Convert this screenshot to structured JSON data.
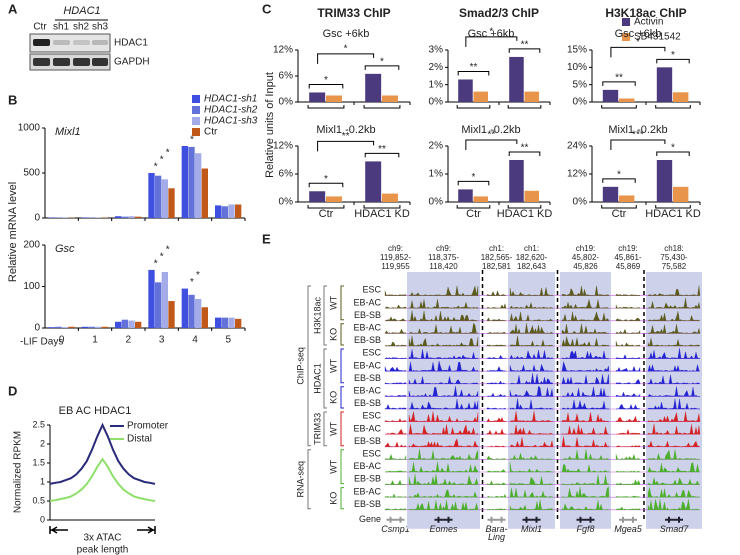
{
  "panel_labels": [
    "A",
    "B",
    "C",
    "D",
    "E"
  ],
  "panel_a": {
    "group_label": "HDAC1",
    "lanes": [
      "Ctr",
      "sh1",
      "sh2",
      "sh3"
    ],
    "rows": [
      "HDAC1",
      "GAPDH"
    ]
  },
  "panel_b": {
    "ylabel": "Relative mRNA level",
    "xlabel": "-LIF Days"
  },
  "panel_c": {
    "ylabel": "Relative units of Input"
  },
  "chart_data": [
    {
      "type": "bar",
      "title": "Mixl1",
      "series": [
        {
          "name": "HDAC1-sh1",
          "color": "#3f4fe0",
          "values": [
            5,
            5,
            20,
            500,
            800,
            140
          ]
        },
        {
          "name": "HDAC1-sh2",
          "color": "#6272d8",
          "values": [
            5,
            5,
            15,
            470,
            790,
            130
          ]
        },
        {
          "name": "HDAC1-sh3",
          "color": "#a3ace8",
          "values": [
            5,
            5,
            20,
            430,
            720,
            150
          ]
        },
        {
          "name": "Ctr",
          "color": "#c0581a",
          "values": [
            5,
            5,
            15,
            330,
            550,
            150
          ]
        }
      ],
      "stars": [
        null,
        null,
        null,
        [
          "*",
          "*",
          "*"
        ],
        [
          "*",
          "*"
        ],
        null
      ],
      "ylim": [
        0,
        1000
      ],
      "yticks": [
        0,
        500,
        1000
      ]
    },
    {
      "type": "bar",
      "title": "Gsc",
      "categories": [
        "0",
        "1",
        "2",
        "3",
        "4",
        "5"
      ],
      "series": [
        {
          "color": "#3f4fe0",
          "values": [
            2,
            3,
            15,
            140,
            95,
            25
          ]
        },
        {
          "color": "#6272d8",
          "values": [
            3,
            3,
            20,
            110,
            80,
            25
          ]
        },
        {
          "color": "#a3ace8",
          "values": [
            2,
            3,
            18,
            135,
            70,
            25
          ]
        },
        {
          "color": "#c0581a",
          "values": [
            3,
            3,
            15,
            65,
            50,
            22
          ]
        }
      ],
      "stars": [
        null,
        null,
        null,
        [
          "*",
          "*",
          "*"
        ],
        [
          "*",
          "*"
        ],
        null
      ],
      "ylim": [
        0,
        200
      ],
      "yticks": [
        0,
        100,
        200
      ]
    },
    {
      "type": "bar",
      "title": "TRIM33 ChIP",
      "subtitle": "Gsc +6kb",
      "series": [
        {
          "name": "Activin",
          "color": "#4b3a7e",
          "values": [
            2.2,
            6.5
          ]
        },
        {
          "name": "SB431542",
          "color": "#e8944a",
          "values": [
            1.5,
            1.5
          ]
        }
      ],
      "stars": [
        "*",
        "*"
      ],
      "bracket_label": "*",
      "ylim": [
        0,
        12
      ],
      "yticks": [
        {
          "value": 0,
          "label": "0%"
        },
        {
          "value": 6,
          "label": "6%"
        },
        {
          "value": 12,
          "label": "12%"
        }
      ]
    },
    {
      "type": "bar",
      "subtitle": "Mixl1 -0.2kb",
      "categories": [
        "Ctr",
        "HDAC1 KD"
      ],
      "series": [
        {
          "color": "#4b3a7e",
          "values": [
            2.3,
            8.7
          ]
        },
        {
          "color": "#e8944a",
          "values": [
            1.2,
            1.8
          ]
        }
      ],
      "stars": [
        "*",
        "**"
      ],
      "bracket_label": "**",
      "ylim": [
        0,
        12
      ],
      "yticks": [
        {
          "value": 0,
          "label": "0%"
        },
        {
          "value": 6,
          "label": "6%"
        },
        {
          "value": 12,
          "label": "12%"
        }
      ]
    },
    {
      "type": "bar",
      "title": "Smad2/3 ChIP",
      "subtitle": "Gsc +6kb",
      "series": [
        {
          "color": "#4b3a7e",
          "values": [
            1.3,
            2.6
          ]
        },
        {
          "color": "#e8944a",
          "values": [
            0.6,
            0.6
          ]
        }
      ],
      "stars": [
        "**",
        "**"
      ],
      "bracket_label": "*",
      "ylim": [
        0,
        3
      ],
      "yticks": [
        {
          "value": 0,
          "label": "0%"
        },
        {
          "value": 1,
          "label": "1%"
        },
        {
          "value": 2,
          "label": "2%"
        },
        {
          "value": 3,
          "label": "3%"
        }
      ]
    },
    {
      "type": "bar",
      "subtitle": "Mixl1 -0.2kb",
      "categories": [
        "Ctr",
        "HDAC1 KD"
      ],
      "series": [
        {
          "color": "#4b3a7e",
          "values": [
            0.45,
            1.5
          ]
        },
        {
          "color": "#e8944a",
          "values": [
            0.2,
            0.4
          ]
        }
      ],
      "stars": [
        "*",
        "**"
      ],
      "bracket_label": "**",
      "ylim": [
        0,
        2
      ],
      "yticks": [
        {
          "value": 0,
          "label": "0%"
        },
        {
          "value": 1,
          "label": "1%"
        },
        {
          "value": 2,
          "label": "2%"
        }
      ]
    },
    {
      "type": "bar",
      "title": "H3K18ac ChIP",
      "subtitle": "Gsc +6kb",
      "series": [
        {
          "color": "#4b3a7e",
          "values": [
            3.5,
            10
          ]
        },
        {
          "color": "#e8944a",
          "values": [
            1.0,
            2.8
          ]
        }
      ],
      "stars": [
        "**",
        "*"
      ],
      "bracket_label": "*",
      "ylim": [
        0,
        15
      ],
      "yticks": [
        {
          "value": 0,
          "label": "0%"
        },
        {
          "value": 5,
          "label": "5%"
        },
        {
          "value": 10,
          "label": "10%"
        },
        {
          "value": 15,
          "label": "15%"
        }
      ]
    },
    {
      "type": "bar",
      "subtitle": "Mixl1 -0.2kb",
      "categories": [
        "Ctr",
        "HDAC1 KD"
      ],
      "series": [
        {
          "color": "#4b3a7e",
          "values": [
            6.5,
            18
          ]
        },
        {
          "color": "#e8944a",
          "values": [
            2.8,
            6.5
          ]
        }
      ],
      "stars": [
        "*",
        "*"
      ],
      "bracket_label": "***",
      "ylim": [
        0,
        24
      ],
      "yticks": [
        {
          "value": 0,
          "label": "0%"
        },
        {
          "value": 12,
          "label": "12%"
        },
        {
          "value": 24,
          "label": "24%"
        }
      ]
    },
    {
      "type": "line",
      "title": "EB AC HDAC1",
      "ylabel": "Normalized RPKM",
      "xlabel": [
        "3x ATAC",
        "peak length"
      ],
      "x": [
        -1,
        -0.9,
        -0.8,
        -0.7,
        -0.6,
        -0.5,
        -0.4,
        -0.3,
        -0.2,
        -0.1,
        0,
        0.1,
        0.2,
        0.3,
        0.4,
        0.5,
        0.6,
        0.7,
        0.8,
        0.9,
        1
      ],
      "xlim": [
        -1,
        1
      ],
      "series": [
        {
          "name": "Promoter",
          "color": "#2a2a7a",
          "values": [
            0.95,
            0.98,
            1.0,
            1.05,
            1.1,
            1.2,
            1.35,
            1.55,
            1.85,
            2.2,
            2.5,
            2.2,
            1.85,
            1.55,
            1.35,
            1.2,
            1.1,
            1.05,
            1.0,
            0.98,
            0.95
          ]
        },
        {
          "name": "Distal",
          "color": "#8ee06a",
          "values": [
            0.5,
            0.52,
            0.55,
            0.58,
            0.62,
            0.7,
            0.8,
            0.95,
            1.15,
            1.4,
            1.6,
            1.4,
            1.15,
            0.95,
            0.8,
            0.7,
            0.62,
            0.58,
            0.55,
            0.52,
            0.5
          ]
        }
      ],
      "ylim": [
        0,
        2.5
      ],
      "yticks": [
        0,
        0.5,
        1,
        1.5,
        2,
        2.5
      ]
    }
  ],
  "panel_e": {
    "regions": [
      {
        "coord": [
          "ch9:",
          "119,852-",
          "119,955"
        ],
        "gene": [
          "Csmp1"
        ],
        "muted": true,
        "highlight": false
      },
      {
        "coord": [
          "ch9:",
          "118,375-",
          "118,420"
        ],
        "gene": [
          "Eomes"
        ],
        "muted": false,
        "highlight": true
      },
      {
        "coord": [
          "ch1:",
          "182,565-",
          "182,581"
        ],
        "gene": [
          "Bara-",
          "Ling"
        ],
        "muted": true,
        "highlight": false
      },
      {
        "coord": [
          "ch1:",
          "182,620-",
          "182,643"
        ],
        "gene": [
          "Mixl1"
        ],
        "muted": false,
        "highlight": true
      },
      {
        "coord": [
          "ch19:",
          "45,802-",
          "45,826"
        ],
        "gene": [
          "Fgf8"
        ],
        "muted": false,
        "highlight": true
      },
      {
        "coord": [
          "ch19:",
          "45,861-",
          "45,869"
        ],
        "gene": [
          "Mgea5"
        ],
        "muted": true,
        "highlight": false
      },
      {
        "coord": [
          "ch18:",
          "75,430-",
          "75,582"
        ],
        "gene": [
          "Smad7"
        ],
        "muted": false,
        "highlight": true
      }
    ],
    "assays": [
      {
        "label": "ChIP-seq",
        "groups": [
          {
            "mark": "H3K18ac",
            "color": "#5b5b1e",
            "subsets": [
              {
                "genotype": "WT",
                "tracks": [
                  "ESC",
                  "EB-AC",
                  "EB-SB"
                ]
              },
              {
                "genotype": "KO",
                "tracks": [
                  "EB-AC",
                  "EB-SB"
                ]
              }
            ]
          },
          {
            "mark": "HDAC1",
            "color": "#2323d0",
            "subsets": [
              {
                "genotype": "WT",
                "tracks": [
                  "ESC",
                  "EB-AC",
                  "EB-SB"
                ]
              },
              {
                "genotype": "KO",
                "tracks": [
                  "EB-AC",
                  "EB-SB"
                ]
              }
            ]
          },
          {
            "mark": "TRIM33",
            "color": "#d42222",
            "subsets": [
              {
                "genotype": "WT",
                "tracks": [
                  "ESC",
                  "EB-AC",
                  "EB-SB"
                ]
              }
            ]
          }
        ]
      },
      {
        "label": "RNA-seq",
        "groups": [
          {
            "color": "#4caf2c",
            "subsets": [
              {
                "genotype": "WT",
                "tracks": [
                  "ESC",
                  "EB-AC",
                  "EB-SB"
                ]
              },
              {
                "genotype": "KO",
                "tracks": [
                  "EB-AC",
                  "EB-SB"
                ]
              }
            ]
          }
        ]
      }
    ],
    "gene_row_label": "Gene"
  }
}
